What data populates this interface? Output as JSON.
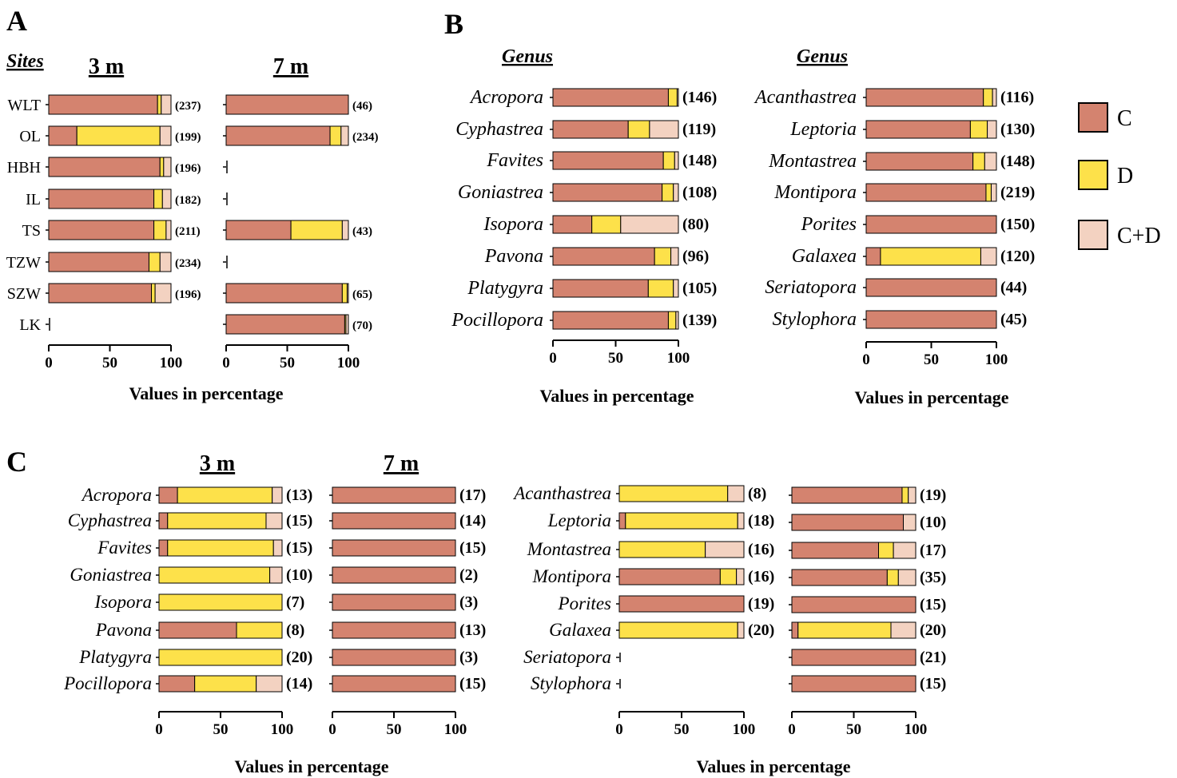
{
  "colors": {
    "C": "#d4836f",
    "D": "#fde14a",
    "C+D": "#f3d2c1"
  },
  "legend": {
    "entries": [
      "C",
      "D",
      "C+D"
    ]
  },
  "panels": {
    "A": {
      "letter": "A",
      "row_heading": "Sites",
      "heading_3m": "3 m",
      "heading_7m": "7 m"
    },
    "B": {
      "letter": "B",
      "heading_left": "Genus",
      "heading_right": "Genus"
    },
    "C": {
      "letter": "C",
      "heading_3m": "3 m",
      "heading_7m": "7 m"
    }
  },
  "axis": {
    "ticks": [
      "0",
      "50",
      "100"
    ],
    "title": "Values in percentage"
  },
  "chart_data": [
    {
      "id": "A-3m",
      "type": "bar",
      "orientation": "horizontal",
      "stacked": true,
      "title": "3 m",
      "xlabel": "Values in percentage",
      "xlim": [
        0,
        100
      ],
      "categories": [
        "WLT",
        "OL",
        "HBH",
        "IL",
        "TS",
        "TZW",
        "SZW",
        "LK"
      ],
      "series": [
        {
          "name": "C",
          "values": [
            89,
            23,
            91,
            86,
            86,
            82,
            84,
            0
          ]
        },
        {
          "name": "D",
          "values": [
            3,
            68,
            3,
            7,
            10,
            9,
            3,
            0
          ]
        },
        {
          "name": "C+D",
          "values": [
            8,
            9,
            6,
            7,
            4,
            9,
            13,
            0
          ]
        }
      ],
      "counts": [
        "(237)",
        "(199)",
        "(196)",
        "(182)",
        "(211)",
        "(234)",
        "(196)",
        ""
      ]
    },
    {
      "id": "A-7m",
      "type": "bar",
      "orientation": "horizontal",
      "stacked": true,
      "title": "7 m",
      "xlabel": "Values in percentage",
      "xlim": [
        0,
        100
      ],
      "categories": [
        "WLT",
        "OL",
        "HBH",
        "IL",
        "TS",
        "TZW",
        "SZW",
        "LK"
      ],
      "series": [
        {
          "name": "C",
          "values": [
            100,
            85,
            0,
            0,
            53,
            0,
            95,
            97
          ]
        },
        {
          "name": "D",
          "values": [
            0,
            9,
            0,
            0,
            42,
            0,
            4,
            1
          ]
        },
        {
          "name": "C+D",
          "values": [
            0,
            6,
            0,
            0,
            5,
            0,
            1,
            2
          ]
        }
      ],
      "counts": [
        "(46)",
        "(234)",
        "",
        "",
        "(43)",
        "",
        "(65)",
        "(70)"
      ]
    },
    {
      "id": "B-left",
      "type": "bar",
      "orientation": "horizontal",
      "stacked": true,
      "title": "Genus",
      "xlabel": "Values in percentage",
      "xlim": [
        0,
        100
      ],
      "categories": [
        "Acropora",
        "Cyphastrea",
        "Favites",
        "Goniastrea",
        "Isopora",
        "Pavona",
        "Platygyra",
        "Pocillopora"
      ],
      "series": [
        {
          "name": "C",
          "values": [
            92,
            60,
            88,
            87,
            31,
            81,
            76,
            92
          ]
        },
        {
          "name": "D",
          "values": [
            7,
            17,
            9,
            9,
            23,
            13,
            20,
            6
          ]
        },
        {
          "name": "C+D",
          "values": [
            1,
            23,
            3,
            4,
            46,
            6,
            4,
            2
          ]
        }
      ],
      "counts": [
        "(146)",
        "(119)",
        "(148)",
        "(108)",
        "(80)",
        "(96)",
        "(105)",
        "(139)"
      ]
    },
    {
      "id": "B-right",
      "type": "bar",
      "orientation": "horizontal",
      "stacked": true,
      "title": "Genus",
      "xlabel": "Values in percentage",
      "xlim": [
        0,
        100
      ],
      "categories": [
        "Acanthastrea",
        "Leptoria",
        "Montastrea",
        "Montipora",
        "Porites",
        "Galaxea",
        "Seriatopora",
        "Stylophora"
      ],
      "series": [
        {
          "name": "C",
          "values": [
            90,
            80,
            82,
            92,
            100,
            11,
            100,
            100
          ]
        },
        {
          "name": "D",
          "values": [
            7,
            13,
            9,
            4,
            0,
            77,
            0,
            0
          ]
        },
        {
          "name": "C+D",
          "values": [
            3,
            7,
            9,
            4,
            0,
            12,
            0,
            0
          ]
        }
      ],
      "counts": [
        "(116)",
        "(130)",
        "(148)",
        "(219)",
        "(150)",
        "(120)",
        "(44)",
        "(45)"
      ]
    },
    {
      "id": "C-3m-1",
      "type": "bar",
      "orientation": "horizontal",
      "stacked": true,
      "title": "3 m",
      "xlabel": "Values in percentage",
      "xlim": [
        0,
        100
      ],
      "categories": [
        "Acropora",
        "Cyphastrea",
        "Favites",
        "Goniastrea",
        "Isopora",
        "Pavona",
        "Platygyra",
        "Pocillopora"
      ],
      "series": [
        {
          "name": "C",
          "values": [
            15,
            7,
            7,
            0,
            0,
            63,
            0,
            29
          ]
        },
        {
          "name": "D",
          "values": [
            77,
            80,
            86,
            90,
            100,
            37,
            100,
            50
          ]
        },
        {
          "name": "C+D",
          "values": [
            8,
            13,
            7,
            10,
            0,
            0,
            0,
            21
          ]
        }
      ],
      "counts": [
        "(13)",
        "(15)",
        "(15)",
        "(10)",
        "(7)",
        "(8)",
        "(20)",
        "(14)"
      ]
    },
    {
      "id": "C-7m-1",
      "type": "bar",
      "orientation": "horizontal",
      "stacked": true,
      "title": "7 m",
      "xlabel": "Values in percentage",
      "xlim": [
        0,
        100
      ],
      "categories": [
        "Acropora",
        "Cyphastrea",
        "Favites",
        "Goniastrea",
        "Isopora",
        "Pavona",
        "Platygyra",
        "Pocillopora"
      ],
      "series": [
        {
          "name": "C",
          "values": [
            100,
            100,
            100,
            100,
            100,
            100,
            100,
            100
          ]
        },
        {
          "name": "D",
          "values": [
            0,
            0,
            0,
            0,
            0,
            0,
            0,
            0
          ]
        },
        {
          "name": "C+D",
          "values": [
            0,
            0,
            0,
            0,
            0,
            0,
            0,
            0
          ]
        }
      ],
      "counts": [
        "(17)",
        "(14)",
        "(15)",
        "(2)",
        "(3)",
        "(13)",
        "(3)",
        "(15)"
      ]
    },
    {
      "id": "C-3m-2",
      "type": "bar",
      "orientation": "horizontal",
      "stacked": true,
      "title": "3 m",
      "xlabel": "Values in percentage",
      "xlim": [
        0,
        100
      ],
      "categories": [
        "Acanthastrea",
        "Leptoria",
        "Montastrea",
        "Montipora",
        "Porites",
        "Galaxea",
        "Seriatopora",
        "Stylophora"
      ],
      "series": [
        {
          "name": "C",
          "values": [
            0,
            5,
            0,
            81,
            100,
            0,
            0,
            0
          ]
        },
        {
          "name": "D",
          "values": [
            87,
            90,
            69,
            13,
            0,
            95,
            0,
            0
          ]
        },
        {
          "name": "C+D",
          "values": [
            13,
            5,
            31,
            6,
            0,
            5,
            0,
            0
          ]
        }
      ],
      "counts": [
        "(8)",
        "(18)",
        "(16)",
        "(16)",
        "(19)",
        "(20)",
        "",
        ""
      ]
    },
    {
      "id": "C-7m-2",
      "type": "bar",
      "orientation": "horizontal",
      "stacked": true,
      "title": "7 m",
      "xlabel": "Values in percentage",
      "xlim": [
        0,
        100
      ],
      "categories": [
        "Acanthastrea",
        "Leptoria",
        "Montastrea",
        "Montipora",
        "Porites",
        "Galaxea",
        "Seriatopora",
        "Stylophora"
      ],
      "series": [
        {
          "name": "C",
          "values": [
            89,
            90,
            70,
            77,
            100,
            5,
            100,
            100
          ]
        },
        {
          "name": "D",
          "values": [
            5,
            0,
            12,
            9,
            0,
            75,
            0,
            0
          ]
        },
        {
          "name": "C+D",
          "values": [
            6,
            10,
            18,
            14,
            0,
            20,
            0,
            0
          ]
        }
      ],
      "counts": [
        "(19)",
        "(10)",
        "(17)",
        "(35)",
        "(15)",
        "(20)",
        "(21)",
        "(15)"
      ]
    }
  ]
}
